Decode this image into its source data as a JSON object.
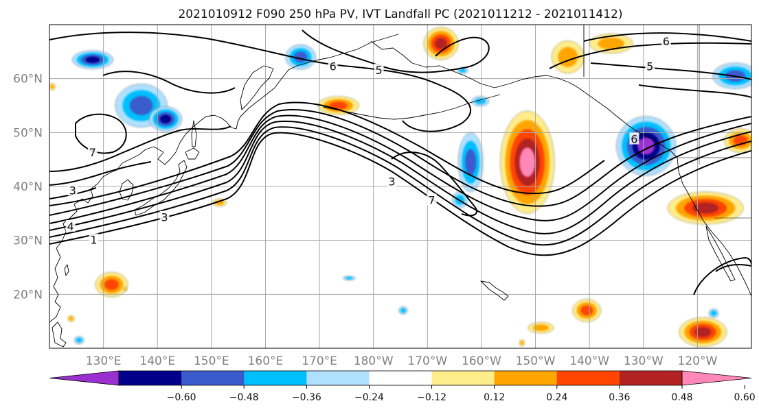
{
  "figure": {
    "title": "2021010912 F090 250 hPa PV, IVT Landfall PC (2021011212 - 2021011412)"
  },
  "map": {
    "lon_range": [
      120,
      250
    ],
    "lat_range": [
      10,
      70
    ],
    "lat_ticks": [
      {
        "value": 20,
        "label": "20°N"
      },
      {
        "value": 30,
        "label": "30°N"
      },
      {
        "value": 40,
        "label": "40°N"
      },
      {
        "value": 50,
        "label": "50°N"
      },
      {
        "value": 60,
        "label": "60°N"
      }
    ],
    "lon_ticks": [
      {
        "value": 130,
        "label": "130°E"
      },
      {
        "value": 140,
        "label": "140°E"
      },
      {
        "value": 150,
        "label": "150°E"
      },
      {
        "value": 160,
        "label": "160°E"
      },
      {
        "value": 170,
        "label": "170°E"
      },
      {
        "value": 180,
        "label": "180°W"
      },
      {
        "value": 190,
        "label": "170°W"
      },
      {
        "value": 200,
        "label": "160°W"
      },
      {
        "value": 210,
        "label": "150°W"
      },
      {
        "value": 220,
        "label": "140°W"
      },
      {
        "value": 230,
        "label": "130°W"
      },
      {
        "value": 240,
        "label": "120°W"
      }
    ],
    "grid": true,
    "contour_labels": [
      {
        "text": "1",
        "lon": 128.2,
        "lat": 30.0
      },
      {
        "text": "3",
        "lon": 141.3,
        "lat": 34.2
      },
      {
        "text": "4",
        "lon": 123.9,
        "lat": 32.5
      },
      {
        "text": "3",
        "lon": 124.3,
        "lat": 39.2
      },
      {
        "text": "7",
        "lon": 128.0,
        "lat": 46.2
      },
      {
        "text": "6",
        "lon": 172.5,
        "lat": 62.2
      },
      {
        "text": "5",
        "lon": 181.0,
        "lat": 61.5
      },
      {
        "text": "3",
        "lon": 183.4,
        "lat": 40.8
      },
      {
        "text": "7",
        "lon": 190.8,
        "lat": 37.4
      },
      {
        "text": "6",
        "lon": 228.3,
        "lat": 48.7
      },
      {
        "text": "6",
        "lon": 234.2,
        "lat": 66.8
      },
      {
        "text": "5",
        "lon": 231.2,
        "lat": 62.2
      }
    ]
  },
  "colorbar": {
    "colors": [
      "#9b30d0",
      "#00008b",
      "#3a5bcc",
      "#00bfff",
      "#b0e0ff",
      "#ffffff",
      "#ffec8b",
      "#ffa500",
      "#ff4500",
      "#b22222",
      "#ff88b8"
    ],
    "tick_labels": [
      "−0.60",
      "−0.48",
      "−0.36",
      "−0.24",
      "−0.12",
      "0.12",
      "0.24",
      "0.36",
      "0.48",
      "0.60"
    ],
    "extend": "both"
  },
  "pc_anomaly_regions": [
    {
      "lon": 128.0,
      "lat": 63.5,
      "rx": 3.8,
      "ry": 1.7,
      "value": -0.48
    },
    {
      "lon": 137.0,
      "lat": 55.0,
      "rx": 4.8,
      "ry": 4.0,
      "value": -0.36
    },
    {
      "lon": 141.5,
      "lat": 52.5,
      "rx": 3.0,
      "ry": 2.3,
      "value": -0.48
    },
    {
      "lon": 166.5,
      "lat": 64.0,
      "rx": 2.8,
      "ry": 2.3,
      "value": -0.36
    },
    {
      "lon": 198.0,
      "lat": 44.5,
      "rx": 2.3,
      "ry": 5.5,
      "value": -0.36
    },
    {
      "lon": 196.0,
      "lat": 37.5,
      "rx": 1.4,
      "ry": 1.5,
      "value": -0.24
    },
    {
      "lon": 199.8,
      "lat": 55.8,
      "rx": 1.6,
      "ry": 0.9,
      "value": -0.24
    },
    {
      "lon": 196.5,
      "lat": 61.5,
      "rx": 1.0,
      "ry": 0.6,
      "value": -0.24
    },
    {
      "lon": 230.5,
      "lat": 47.5,
      "rx": 5.5,
      "ry": 5.5,
      "value": -0.6
    },
    {
      "lon": 247.0,
      "lat": 60.5,
      "rx": 4.2,
      "ry": 2.4,
      "value": -0.36
    },
    {
      "lon": 243.0,
      "lat": 16.5,
      "rx": 0.9,
      "ry": 0.8,
      "value": -0.24
    },
    {
      "lon": 185.5,
      "lat": 17.0,
      "rx": 0.8,
      "ry": 0.7,
      "value": -0.24
    },
    {
      "lon": 175.5,
      "lat": 23.0,
      "rx": 1.1,
      "ry": 0.4,
      "value": -0.24
    },
    {
      "lon": 125.5,
      "lat": 11.5,
      "rx": 0.9,
      "ry": 0.7,
      "value": -0.24
    },
    {
      "lon": 192.5,
      "lat": 66.5,
      "rx": 3.2,
      "ry": 3.0,
      "value": 0.48
    },
    {
      "lon": 173.5,
      "lat": 55.0,
      "rx": 3.8,
      "ry": 1.7,
      "value": 0.36
    },
    {
      "lon": 208.5,
      "lat": 44.5,
      "rx": 5.0,
      "ry": 9.5,
      "value": 0.6
    },
    {
      "lon": 216.0,
      "lat": 64.0,
      "rx": 3.0,
      "ry": 3.0,
      "value": 0.24
    },
    {
      "lon": 224.0,
      "lat": 66.5,
      "rx": 4.0,
      "ry": 1.8,
      "value": 0.24
    },
    {
      "lon": 241.5,
      "lat": 36.0,
      "rx": 7.0,
      "ry": 3.0,
      "value": 0.48
    },
    {
      "lon": 248.0,
      "lat": 48.5,
      "rx": 3.0,
      "ry": 2.2,
      "value": 0.36
    },
    {
      "lon": 131.5,
      "lat": 21.8,
      "rx": 3.0,
      "ry": 2.3,
      "value": 0.36
    },
    {
      "lon": 151.5,
      "lat": 37.0,
      "rx": 1.3,
      "ry": 0.7,
      "value": 0.24
    },
    {
      "lon": 219.5,
      "lat": 17.0,
      "rx": 2.6,
      "ry": 2.1,
      "value": 0.36
    },
    {
      "lon": 211.0,
      "lat": 13.8,
      "rx": 2.4,
      "ry": 1.0,
      "value": 0.24
    },
    {
      "lon": 241.0,
      "lat": 13.0,
      "rx": 4.4,
      "ry": 2.7,
      "value": 0.48
    },
    {
      "lon": 124.0,
      "lat": 15.5,
      "rx": 0.6,
      "ry": 0.6,
      "value": 0.24
    },
    {
      "lon": 134.0,
      "lat": 21.0,
      "rx": 0.4,
      "ry": 0.4,
      "value": 0.24
    },
    {
      "lon": 120.5,
      "lat": 58.5,
      "rx": 0.6,
      "ry": 0.6,
      "value": 0.24
    },
    {
      "lon": 207.5,
      "lat": 11.0,
      "rx": 0.5,
      "ry": 0.6,
      "value": 0.24
    }
  ]
}
